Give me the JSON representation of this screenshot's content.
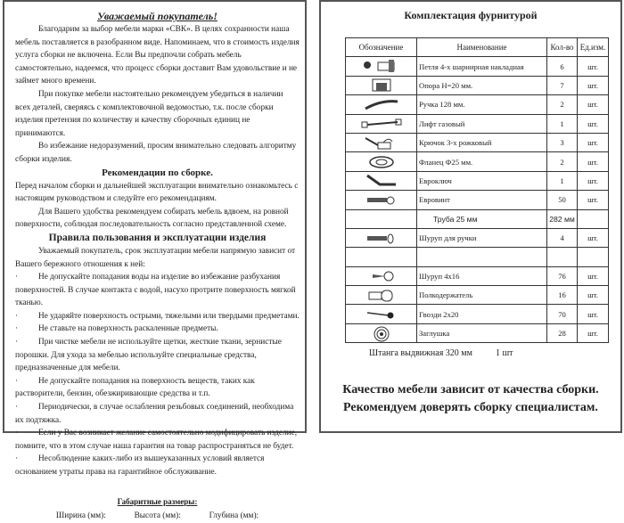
{
  "left": {
    "title": "Уважаемый покупатель!",
    "intro": [
      "Благодарим за выбор мебели марки «СВК». В целях сохранности наша мебель поставляется в разобранном виде. Напоминаем, что в стоимость изделия услуга сборки не включена. Если Вы предпочли собрать мебель самостоятельно, надеемся, что процесс сборки доставит Вам удовольствие и не займет много времени.",
      "При покупке мебели настоятельно рекомендуем убедиться в наличии всех деталей, сверяясь с комплектовочной ведомостью, т.к. после сборки изделия претензия по количеству и качеству сборочных единиц не принимаются.",
      "Во избежание недоразумений, просим внимательно следовать алгоритму сборки изделия."
    ],
    "rec_title": "Рекомендации по сборке.",
    "rec": [
      "Перед началом сборки и дальнейшей эксплуатации внимательно ознакомьтесь с настоящим руководством и следуйте его рекомендациям.",
      "Для Вашего удобства рекомендуем собирать мебель вдвоем, на ровной поверхности, соблюдая последовательность согласно представленной схеме."
    ],
    "rules_title": "Правила пользования и эксплуатации изделия",
    "rules_intro": "Уважаемый покупатель, срок эксплуатации мебели напрямую зависит от Вашего бережного отношения к ней:",
    "bullet": "·",
    "rules": [
      "Не допускайте попадания воды на изделие во избежание разбухания поверхностей. В случае контакта с водой, насухо протрите поверхность мягкой тканью.",
      "Не ударяйте поверхность острыми, тяжелыми или твердыми предметами.",
      "Не ставьте на поверхность раскаленные предметы.",
      "При чистке мебели не используйте щетки, жесткие ткани, зернистые порошки. Для ухода за мебелью используйте специальные средства, предназначенные для мебели.",
      "Не допускайте попадания на поверхность веществ, таких как растворители, бензин, обезжиривающие средства и т.п.",
      "Периодически, в случае ослабления резьбовых соединений, необходима их подтяжка.",
      "Если у Вас возникает желание самостоятельно модифицировать изделие, помните, что в этом случае наша гарантия на товар распространяться не будет.",
      "Несоблюдение каких-либо из вышеуказанных условий является основанием утраты права на гарантийное обслуживание."
    ],
    "dims_title": "Габаритные размеры:",
    "dims": [
      "Ширина (мм):",
      "Высота (мм):",
      "Глубина (мм):"
    ]
  },
  "right": {
    "title": "Комплектация фурнитурой",
    "headers": [
      "Обозначение",
      "Наименование",
      "Кол-во",
      "Ед.изм."
    ],
    "rows": [
      {
        "icon": "hinge-icon",
        "name": "Петля 4-х шарнирная накладная",
        "qty": "6",
        "unit": "шт."
      },
      {
        "icon": "support-foot-icon",
        "name": "Опора Н=20 мм.",
        "qty": "7",
        "unit": "шт."
      },
      {
        "icon": "handle-icon",
        "name": "Ручка 128 мм.",
        "qty": "2",
        "unit": "шт."
      },
      {
        "icon": "gas-lift-icon",
        "name": "Лифт газовый",
        "qty": "1",
        "unit": "шт."
      },
      {
        "icon": "hook-icon",
        "name": "Крючок 3-х рожковый",
        "qty": "3",
        "unit": "шт."
      },
      {
        "icon": "flange-icon",
        "name": "Фланец Ф25 мм.",
        "qty": "2",
        "unit": "шт."
      },
      {
        "icon": "hex-key-icon",
        "name": "Евроключ",
        "qty": "1",
        "unit": "шт."
      },
      {
        "icon": "euro-screw-icon",
        "name": "Евровинт",
        "qty": "50",
        "unit": "шт."
      },
      {
        "icon": "",
        "name": "Труба 25 мм",
        "qty": "282 мм",
        "unit": ""
      },
      {
        "icon": "handle-screw-icon",
        "name": "Шуруп для ручки",
        "qty": "4",
        "unit": "шт."
      },
      {
        "icon": "",
        "name": "",
        "qty": "",
        "unit": ""
      },
      {
        "icon": "screw-icon",
        "name": "Шуруп 4х16",
        "qty": "76",
        "unit": "шт."
      },
      {
        "icon": "shelf-pin-icon",
        "name": "Полкодержатель",
        "qty": "16",
        "unit": "шт."
      },
      {
        "icon": "nail-icon",
        "name": "Гвозди 2х20",
        "qty": "70",
        "unit": "шт."
      },
      {
        "icon": "cap-icon",
        "name": "Заглушка",
        "qty": "28",
        "unit": "шт."
      }
    ],
    "extra_name": "Штанга выдвижная 320 мм",
    "extra_qty": "1 шт",
    "bottom": [
      "Качество мебели зависит от качества сборки.",
      "Рекомендуем доверять сборку специалистам."
    ]
  }
}
